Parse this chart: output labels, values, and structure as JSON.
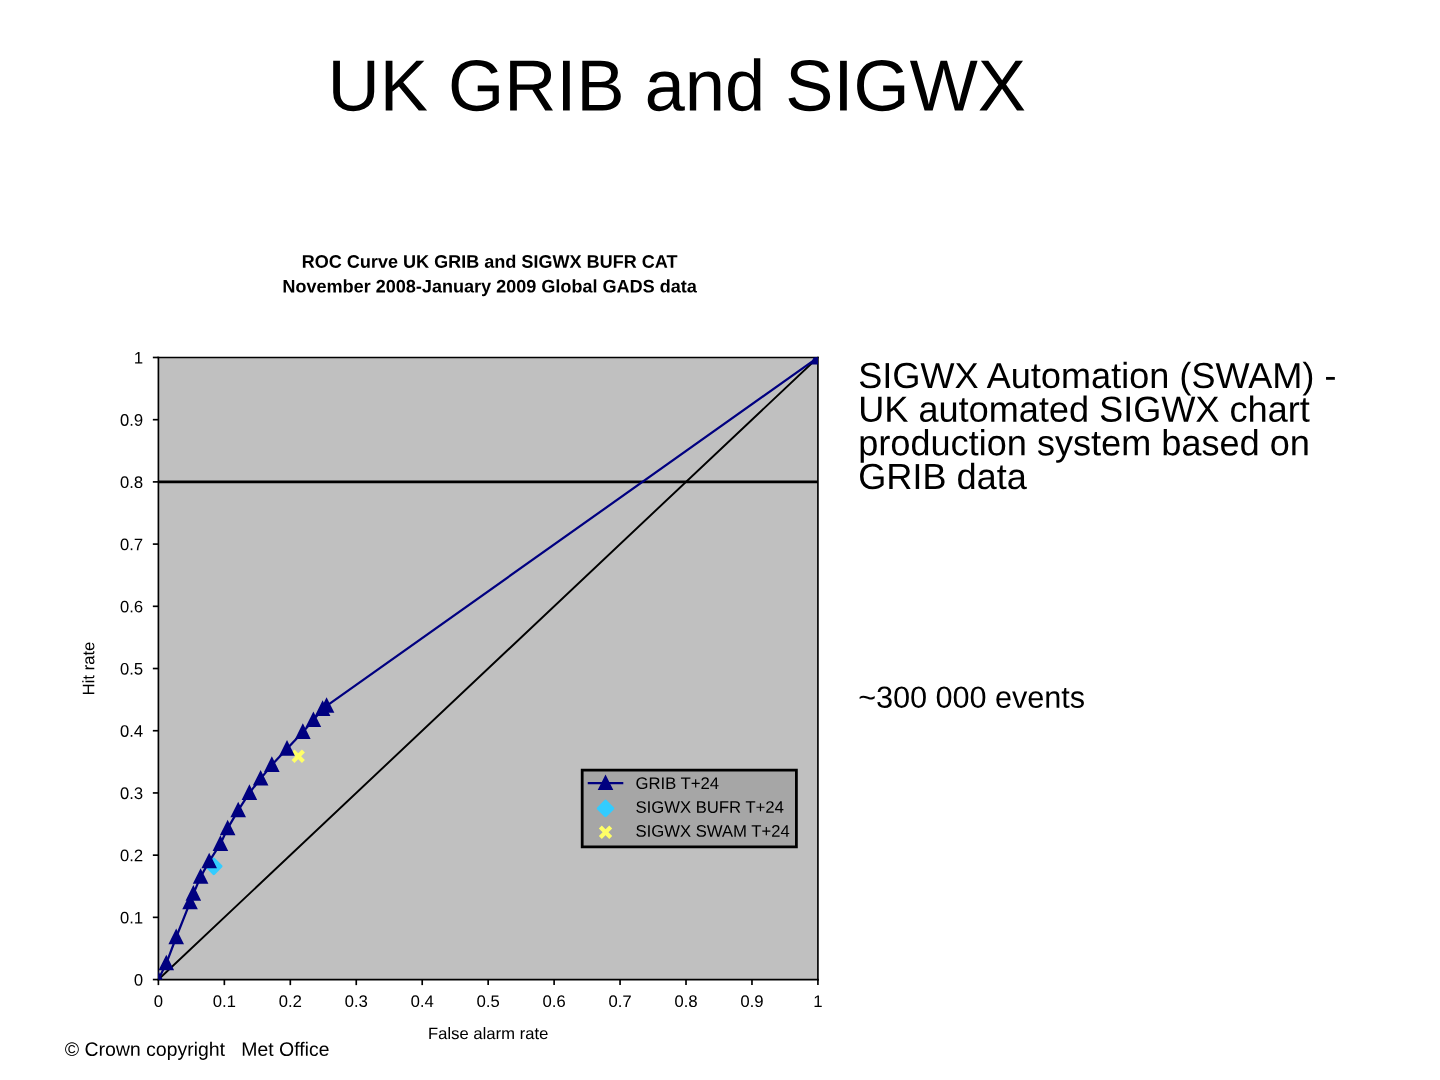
{
  "chart_data": {
    "type": "line",
    "title": "UK GRIB and SIGWX",
    "subtitle": "ROC Curve UK GRIB and SIGWX BUFR CAT\nNovember 2008-January 2009 Global GADS data",
    "xlabel": "False alarm rate",
    "ylabel": "Hit rate",
    "xlim": [
      0,
      1
    ],
    "ylim": [
      0,
      1
    ],
    "xticks": [
      0,
      0.1,
      0.2,
      0.3,
      0.4,
      0.5,
      0.6,
      0.7,
      0.8,
      0.9,
      1
    ],
    "yticks": [
      0,
      0.1,
      0.2,
      0.3,
      0.4,
      0.5,
      0.6,
      0.7,
      0.8,
      0.9,
      1
    ],
    "grid": false,
    "legend": "right",
    "series": [
      {
        "name": "GRIB T+24",
        "color": "#000080",
        "marker": "triangle",
        "line_style": "solid",
        "x": [
          0,
          0.012,
          0.027,
          0.048,
          0.053,
          0.064,
          0.077,
          0.094,
          0.105,
          0.121,
          0.138,
          0.155,
          0.172,
          0.195,
          0.219,
          0.235,
          0.249,
          0.255,
          1
        ],
        "values": [
          0,
          0.026,
          0.068,
          0.124,
          0.138,
          0.165,
          0.19,
          0.218,
          0.243,
          0.272,
          0.3,
          0.323,
          0.345,
          0.371,
          0.398,
          0.417,
          0.435,
          0.44,
          1
        ]
      },
      {
        "name": "SIGWX BUFR T+24",
        "type": "scatter",
        "color": "#33ccff",
        "marker": "diamond",
        "x": [
          0.084
        ],
        "values": [
          0.182
        ]
      },
      {
        "name": "SIGWX SWAM T+24",
        "type": "scatter",
        "color": "#ffff66",
        "marker": "cross",
        "x": [
          0.212
        ],
        "values": [
          0.359
        ]
      },
      {
        "type": "line",
        "color": "#000000",
        "marker": "none",
        "line_style": "solid",
        "x": [
          0,
          1
        ],
        "values": [
          0,
          1
        ]
      }
    ],
    "ref_lines": [
      {
        "axis": "y",
        "value": 0.8,
        "color": "#000000"
      }
    ],
    "annotations": [
      "SIGWX Automation (SWAM) -\nUK automated SIGWX chart\nproduction system based on\nGRIB data",
      "~300 000 events",
      "© Crown copyright   Met Office"
    ]
  }
}
